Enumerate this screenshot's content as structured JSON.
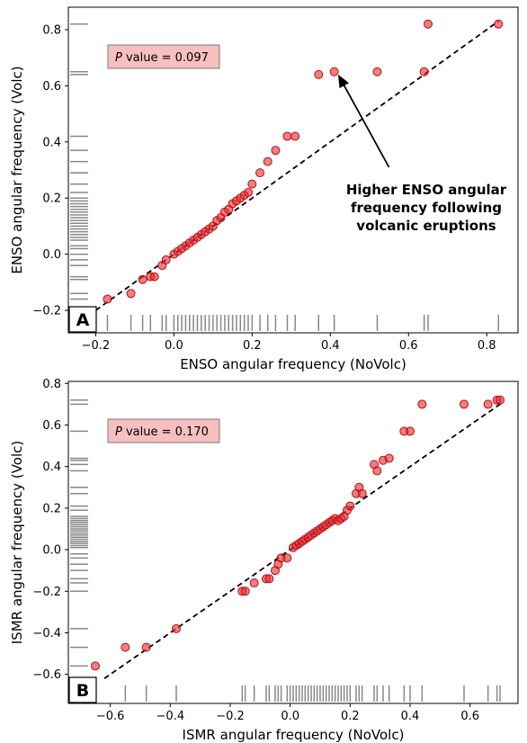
{
  "chart_data": [
    {
      "type": "scatter",
      "panel_label": "A",
      "xlabel": "ENSO angular frequency (NoVolc)",
      "ylabel": "ENSO angular frequency (Volc)",
      "xlim": [
        -0.27,
        0.88
      ],
      "ylim": [
        -0.28,
        0.88
      ],
      "xticks": [
        -0.2,
        0.0,
        0.2,
        0.4,
        0.6,
        0.8
      ],
      "xtick_labels": [
        "−0.2",
        "0.0",
        "0.2",
        "0.4",
        "0.6",
        "0.8"
      ],
      "yticks": [
        -0.2,
        0.0,
        0.2,
        0.4,
        0.6,
        0.8
      ],
      "ytick_labels": [
        "−0.2",
        "0.0",
        "0.2",
        "0.4",
        "0.6",
        "0.8"
      ],
      "pvalue_italic": "P",
      "pvalue_text": " value = 0.097",
      "annotation_lines": [
        "Higher ENSO angular",
        "frequency following",
        "volcanic eruptions"
      ],
      "annotation_arrow_to": [
        0.42,
        0.64
      ],
      "annotation_arrow_from": [
        0.55,
        0.31
      ],
      "diagonal": [
        -0.2,
        0.83
      ],
      "points": {
        "x": [
          -0.17,
          -0.11,
          -0.08,
          -0.06,
          -0.05,
          -0.03,
          -0.02,
          0.0,
          0.01,
          0.02,
          0.03,
          0.04,
          0.05,
          0.06,
          0.07,
          0.08,
          0.09,
          0.1,
          0.11,
          0.12,
          0.13,
          0.14,
          0.15,
          0.16,
          0.17,
          0.18,
          0.19,
          0.2,
          0.22,
          0.24,
          0.26,
          0.29,
          0.31,
          0.37,
          0.41,
          0.52,
          0.64,
          0.65,
          0.83
        ],
        "y": [
          -0.16,
          -0.14,
          -0.09,
          -0.08,
          -0.08,
          -0.04,
          -0.02,
          0.0,
          0.01,
          0.02,
          0.03,
          0.04,
          0.05,
          0.06,
          0.07,
          0.08,
          0.09,
          0.1,
          0.12,
          0.13,
          0.15,
          0.16,
          0.18,
          0.19,
          0.2,
          0.21,
          0.22,
          0.25,
          0.29,
          0.33,
          0.37,
          0.42,
          0.42,
          0.64,
          0.65,
          0.65,
          0.65,
          0.82,
          0.82
        ]
      },
      "rug_x": [
        -0.17,
        -0.11,
        -0.08,
        -0.06,
        -0.03,
        -0.02,
        0.0,
        0.01,
        0.02,
        0.03,
        0.04,
        0.05,
        0.06,
        0.07,
        0.08,
        0.09,
        0.1,
        0.11,
        0.12,
        0.13,
        0.14,
        0.15,
        0.16,
        0.17,
        0.18,
        0.19,
        0.2,
        0.22,
        0.24,
        0.26,
        0.29,
        0.31,
        0.37,
        0.41,
        0.52,
        0.64,
        0.65,
        0.83
      ],
      "rug_y": [
        -0.16,
        -0.14,
        -0.09,
        -0.08,
        -0.04,
        -0.02,
        0.0,
        0.02,
        0.03,
        0.05,
        0.06,
        0.07,
        0.08,
        0.09,
        0.1,
        0.11,
        0.12,
        0.13,
        0.14,
        0.15,
        0.16,
        0.17,
        0.18,
        0.19,
        0.2,
        0.22,
        0.25,
        0.29,
        0.33,
        0.37,
        0.42,
        0.64,
        0.65,
        0.82
      ]
    },
    {
      "type": "scatter",
      "panel_label": "B",
      "xlabel": "ISMR angular frequency (NoVolc)",
      "ylabel": "ISMR angular frequency (Volc)",
      "xlim": [
        -0.74,
        0.76
      ],
      "ylim": [
        -0.74,
        0.81
      ],
      "xticks": [
        -0.6,
        -0.4,
        -0.2,
        0.0,
        0.2,
        0.4,
        0.6
      ],
      "xtick_labels": [
        "−0.6",
        "−0.4",
        "−0.2",
        "0.0",
        "0.2",
        "0.4",
        "0.6"
      ],
      "yticks": [
        -0.6,
        -0.4,
        -0.2,
        0.0,
        0.2,
        0.4,
        0.6,
        0.8
      ],
      "ytick_labels": [
        "−0.6",
        "−0.4",
        "−0.2",
        "0.0",
        "0.2",
        "0.4",
        "0.6",
        "0.8"
      ],
      "pvalue_italic": "P",
      "pvalue_text": " value = 0.170",
      "diagonal": [
        -0.62,
        0.71
      ],
      "points": {
        "x": [
          -0.65,
          -0.55,
          -0.48,
          -0.38,
          -0.16,
          -0.15,
          -0.12,
          -0.08,
          -0.07,
          -0.05,
          -0.04,
          -0.03,
          -0.01,
          0.01,
          0.02,
          0.03,
          0.04,
          0.05,
          0.06,
          0.07,
          0.08,
          0.09,
          0.1,
          0.11,
          0.12,
          0.13,
          0.14,
          0.15,
          0.16,
          0.17,
          0.18,
          0.19,
          0.2,
          0.22,
          0.23,
          0.24,
          0.28,
          0.29,
          0.31,
          0.33,
          0.38,
          0.4,
          0.44,
          0.58,
          0.66,
          0.69,
          0.7
        ],
        "y": [
          -0.56,
          -0.47,
          -0.47,
          -0.38,
          -0.2,
          -0.2,
          -0.16,
          -0.14,
          -0.14,
          -0.1,
          -0.07,
          -0.04,
          -0.04,
          0.01,
          0.02,
          0.03,
          0.04,
          0.05,
          0.06,
          0.07,
          0.08,
          0.09,
          0.1,
          0.11,
          0.12,
          0.13,
          0.14,
          0.15,
          0.14,
          0.15,
          0.16,
          0.19,
          0.21,
          0.27,
          0.3,
          0.27,
          0.41,
          0.38,
          0.43,
          0.44,
          0.57,
          0.57,
          0.7,
          0.7,
          0.7,
          0.72,
          0.72
        ]
      },
      "rug_x": [
        -0.65,
        -0.55,
        -0.48,
        -0.38,
        -0.16,
        -0.15,
        -0.12,
        -0.08,
        -0.07,
        -0.05,
        -0.04,
        -0.03,
        -0.01,
        0.0,
        0.01,
        0.02,
        0.03,
        0.04,
        0.05,
        0.06,
        0.07,
        0.08,
        0.09,
        0.1,
        0.11,
        0.12,
        0.13,
        0.14,
        0.15,
        0.16,
        0.17,
        0.18,
        0.19,
        0.2,
        0.22,
        0.23,
        0.24,
        0.28,
        0.29,
        0.31,
        0.33,
        0.38,
        0.4,
        0.44,
        0.58,
        0.66,
        0.69,
        0.7
      ],
      "rug_y": [
        -0.56,
        -0.47,
        -0.38,
        -0.2,
        -0.16,
        -0.14,
        -0.1,
        -0.07,
        -0.04,
        -0.02,
        0.01,
        0.02,
        0.03,
        0.04,
        0.05,
        0.06,
        0.07,
        0.08,
        0.09,
        0.1,
        0.11,
        0.12,
        0.13,
        0.14,
        0.15,
        0.16,
        0.19,
        0.21,
        0.27,
        0.3,
        0.38,
        0.41,
        0.43,
        0.44,
        0.57,
        0.7,
        0.72
      ]
    }
  ],
  "colors": {
    "point_fill": "#e8262a",
    "point_stroke": "#b01015",
    "rug": "#888888",
    "pvalue_box_fill": "#f7bfbf",
    "pvalue_box_stroke": "#7a7a7a"
  }
}
